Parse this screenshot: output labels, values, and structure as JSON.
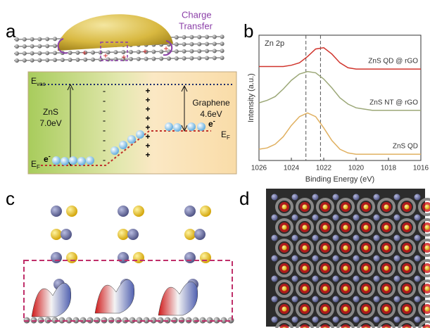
{
  "panel_labels": [
    "a",
    "b",
    "c",
    "d"
  ],
  "panel_a": {
    "charge_transfer": [
      "Charge",
      "Transfer"
    ],
    "e_vac": {
      "main": "E",
      "sub": "vac"
    },
    "zns": [
      "ZnS",
      "7.0eV"
    ],
    "graphene": [
      "Graphene",
      "4.6eV"
    ],
    "electron": "e",
    "electron_sup": "-",
    "e_f": {
      "main": "E",
      "sub": "F"
    }
  },
  "chart_data": {
    "type": "line",
    "title": "Zn 2p",
    "xlabel": "Binding Energy (eV)",
    "ylabel": "Intensity (a.u.)",
    "x": [
      1026,
      1025.5,
      1025,
      1024.5,
      1024,
      1023.5,
      1023,
      1022.5,
      1022,
      1021.5,
      1021,
      1020.5,
      1020,
      1019.5,
      1019,
      1018.5,
      1018,
      1017.5,
      1017,
      1016.5,
      1016
    ],
    "xlim": [
      1026,
      1016
    ],
    "xticks": [
      1026,
      1024,
      1022,
      1020,
      1018,
      1016
    ],
    "ylim": [
      0,
      10
    ],
    "reference_lines": [
      1023.1,
      1022.2
    ],
    "series": [
      {
        "name": "ZnS QD @ rGO",
        "color": "#d0342c",
        "values": [
          7.5,
          7.5,
          7.5,
          7.5,
          7.6,
          7.8,
          8.3,
          8.9,
          9.0,
          8.5,
          7.8,
          7.4,
          7.3,
          7.3,
          7.3,
          7.3,
          7.3,
          7.3,
          7.3,
          7.3,
          7.3
        ]
      },
      {
        "name": "ZnS NT @ rGO",
        "color": "#9ca878",
        "values": [
          4.6,
          4.8,
          5.1,
          5.7,
          6.4,
          6.9,
          7.1,
          7.0,
          6.5,
          5.8,
          5.0,
          4.5,
          4.2,
          4.1,
          4.0,
          4.0,
          4.0,
          4.0,
          4.0,
          4.0,
          4.0
        ]
      },
      {
        "name": "ZnS QD",
        "color": "#e0b060",
        "values": [
          0.9,
          1.0,
          1.3,
          1.9,
          2.8,
          3.5,
          3.8,
          3.5,
          2.6,
          1.6,
          0.9,
          0.6,
          0.5,
          0.5,
          0.5,
          0.5,
          0.5,
          0.5,
          0.5,
          0.5,
          0.5
        ]
      }
    ]
  }
}
